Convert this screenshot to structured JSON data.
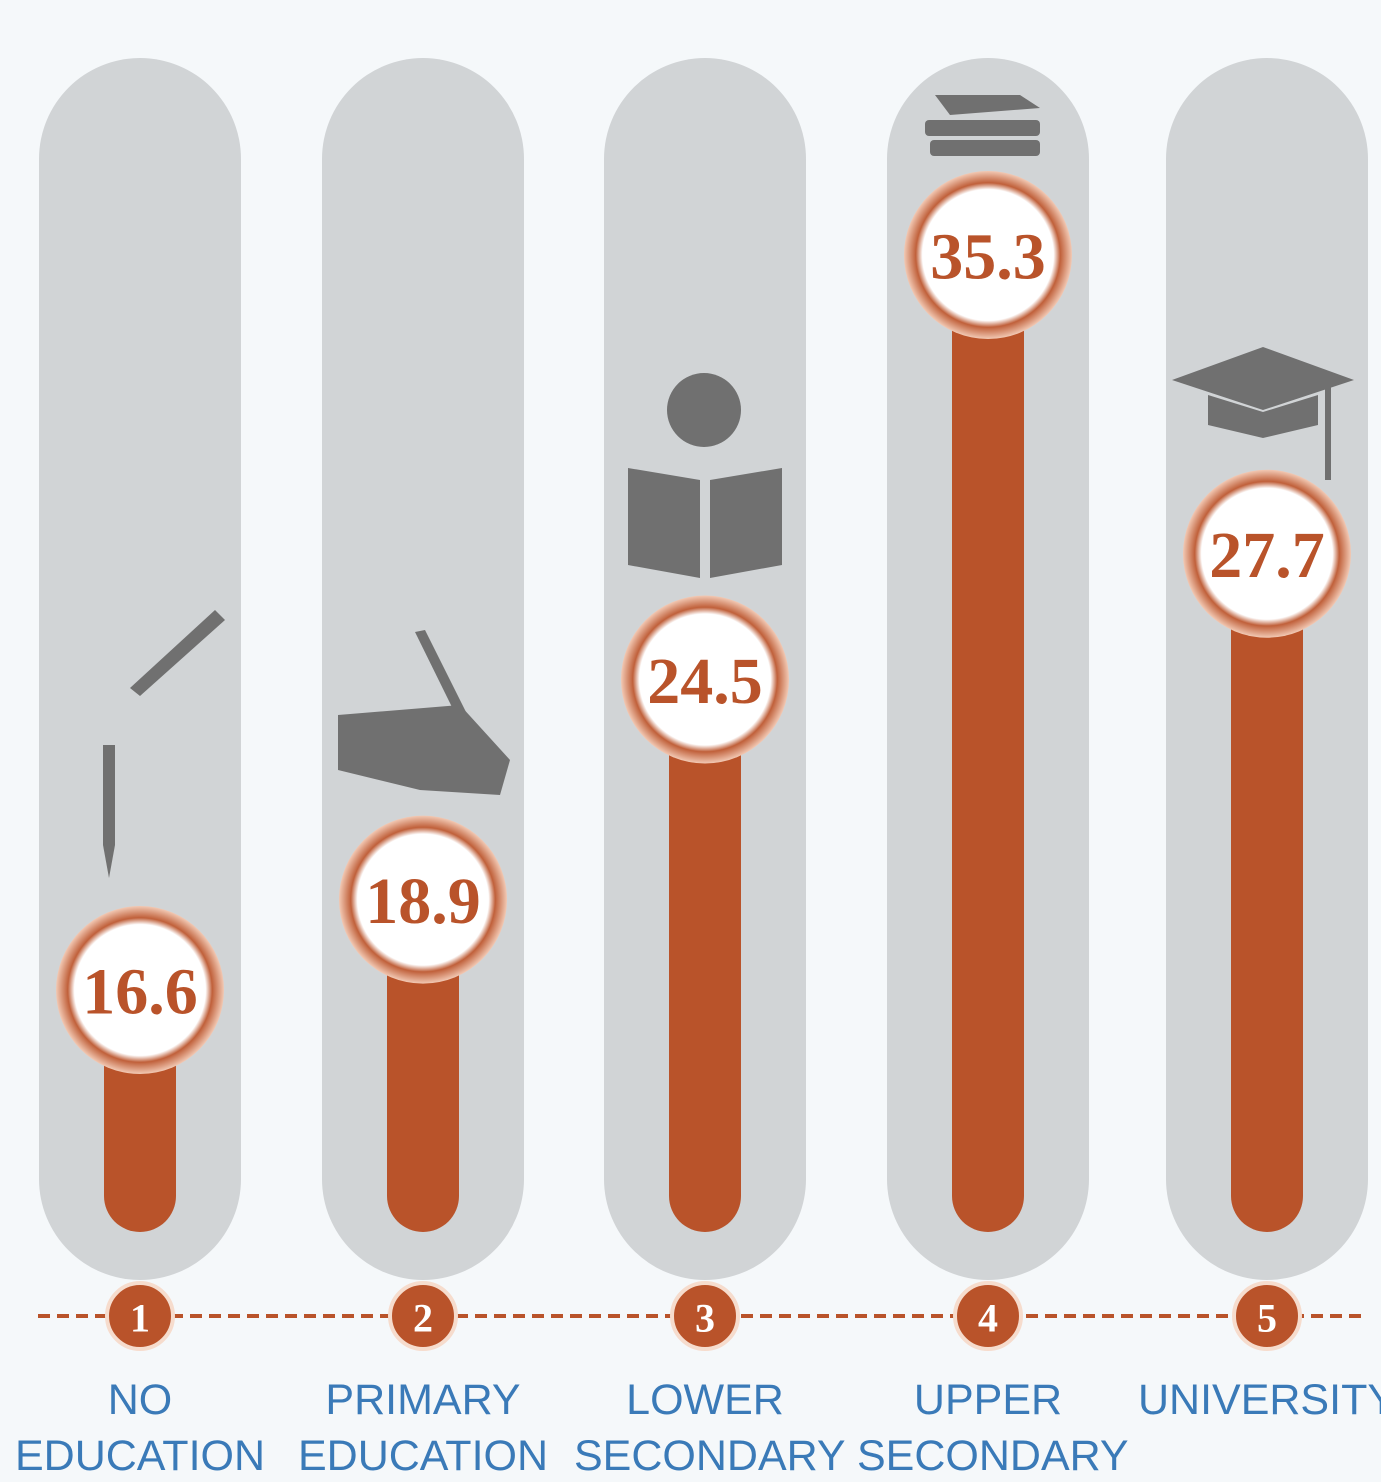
{
  "chart_data": {
    "type": "bar",
    "categories": [
      "NO EDUCATION",
      "PRIMARY EDUCATION",
      "LOWER SECONDARY",
      "UPPER SECONDARY",
      "UNIVERSITY"
    ],
    "values": [
      16.6,
      18.9,
      24.5,
      35.3,
      27.7
    ],
    "steps": [
      1,
      2,
      3,
      4,
      5
    ],
    "color": "#b9532a"
  }
}
